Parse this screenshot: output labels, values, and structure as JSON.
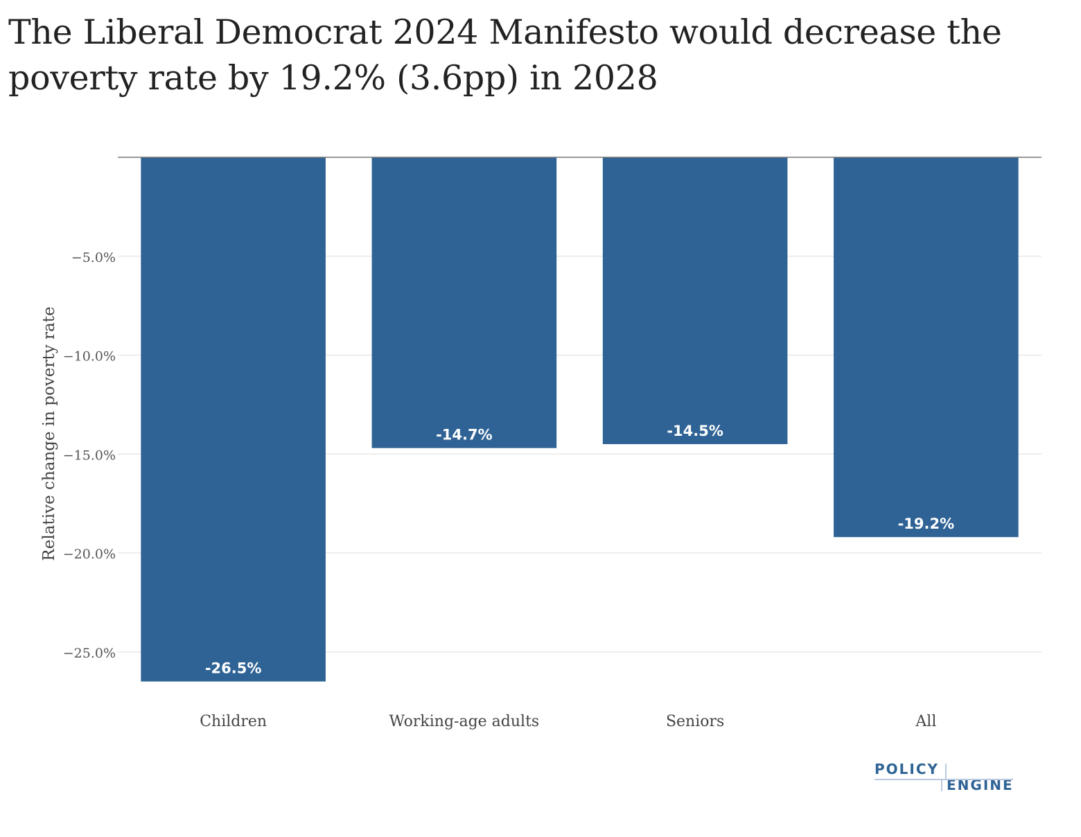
{
  "chart_data": {
    "type": "bar",
    "title": "The Liberal Democrat 2024 Manifesto would decrease the poverty rate by 19.2% (3.6pp) in 2028",
    "xlabel": "",
    "ylabel": "Relative change in poverty rate",
    "categories": [
      "Children",
      "Working-age adults",
      "Seniors",
      "All"
    ],
    "values": [
      -26.5,
      -14.7,
      -14.5,
      -19.2
    ],
    "data_labels": [
      "-26.5%",
      "-14.7%",
      "-14.5%",
      "-19.2%"
    ],
    "ylim": [
      -27.4,
      0
    ],
    "yticks": [
      -5,
      -10,
      -15,
      -20,
      -25
    ],
    "ytick_labels": [
      "−5.0%",
      "−10.0%",
      "−15.0%",
      "−20.0%",
      "−25.0%"
    ],
    "grid": true,
    "legend": "none",
    "colors": {
      "bar": "#2f6395",
      "grid": "#e8e8e8",
      "zero_line": "#777777",
      "label_text": "#ffffff",
      "axis_text": "#555555"
    }
  },
  "branding": {
    "logo_top": "POLICY",
    "logo_bottom": "ENGINE",
    "logo_color": "#2f6395"
  }
}
